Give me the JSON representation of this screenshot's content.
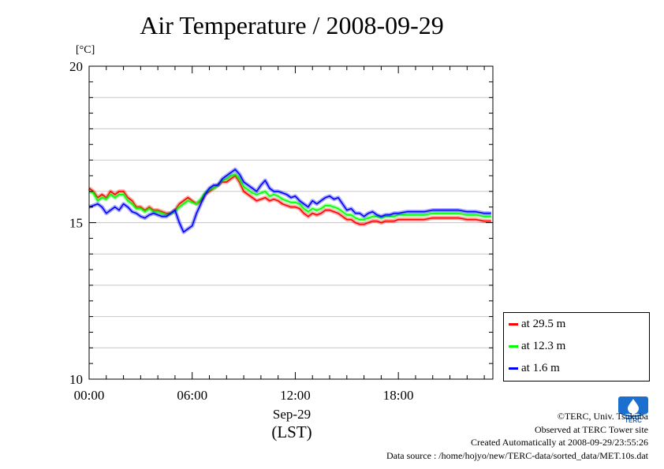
{
  "chart_data": {
    "type": "line",
    "title": "Air Temperature / 2008-09-29",
    "ylabel": "[°C]",
    "xlabel": "Sep-29",
    "xlabel2": "(LST)",
    "x_ticks": [
      "00:00",
      "06:00",
      "12:00",
      "18:00"
    ],
    "x_tick_hours": [
      0,
      6,
      12,
      18
    ],
    "y_ticks": [
      "10",
      "15",
      "20"
    ],
    "y_tick_values": [
      10,
      15,
      20
    ],
    "xlim": [
      0,
      23.5
    ],
    "ylim": [
      10,
      20
    ],
    "grid": true,
    "legend_position": "right-bottom-outside",
    "series": [
      {
        "name": "at 29.5 m",
        "color": "#ff0000",
        "x": [
          0,
          0.25,
          0.5,
          0.75,
          1,
          1.25,
          1.5,
          1.75,
          2,
          2.25,
          2.5,
          2.75,
          3,
          3.25,
          3.5,
          3.75,
          4,
          4.25,
          4.5,
          4.75,
          5,
          5.25,
          5.5,
          5.75,
          6,
          6.25,
          6.5,
          6.75,
          7,
          7.25,
          7.5,
          7.75,
          8,
          8.25,
          8.5,
          8.75,
          9,
          9.25,
          9.5,
          9.75,
          10,
          10.25,
          10.5,
          10.75,
          11,
          11.25,
          11.5,
          11.75,
          12,
          12.25,
          12.5,
          12.75,
          13,
          13.25,
          13.5,
          13.75,
          14,
          14.25,
          14.5,
          14.75,
          15,
          15.25,
          15.5,
          15.75,
          16,
          16.25,
          16.5,
          16.75,
          17,
          17.25,
          17.5,
          17.75,
          18,
          18.5,
          19,
          19.5,
          20,
          20.5,
          21,
          21.5,
          22,
          22.5,
          23,
          23.4
        ],
        "y": [
          16.1,
          16.0,
          15.8,
          15.9,
          15.8,
          16.0,
          15.9,
          16.0,
          16.0,
          15.8,
          15.7,
          15.5,
          15.5,
          15.4,
          15.5,
          15.4,
          15.4,
          15.35,
          15.3,
          15.3,
          15.4,
          15.6,
          15.7,
          15.8,
          15.7,
          15.6,
          15.7,
          15.9,
          16.0,
          16.1,
          16.2,
          16.3,
          16.3,
          16.4,
          16.5,
          16.3,
          16.0,
          15.9,
          15.8,
          15.7,
          15.75,
          15.8,
          15.7,
          15.75,
          15.7,
          15.6,
          15.55,
          15.5,
          15.5,
          15.45,
          15.3,
          15.2,
          15.3,
          15.25,
          15.3,
          15.4,
          15.4,
          15.35,
          15.3,
          15.2,
          15.1,
          15.1,
          15.0,
          14.95,
          14.95,
          15.0,
          15.05,
          15.05,
          15.0,
          15.05,
          15.05,
          15.05,
          15.1,
          15.1,
          15.1,
          15.1,
          15.15,
          15.15,
          15.15,
          15.15,
          15.1,
          15.1,
          15.05,
          15.05
        ]
      },
      {
        "name": "at 12.3 m",
        "color": "#00ff00",
        "x": [
          0,
          0.25,
          0.5,
          0.75,
          1,
          1.25,
          1.5,
          1.75,
          2,
          2.25,
          2.5,
          2.75,
          3,
          3.25,
          3.5,
          3.75,
          4,
          4.25,
          4.5,
          4.75,
          5,
          5.25,
          5.5,
          5.75,
          6,
          6.25,
          6.5,
          6.75,
          7,
          7.25,
          7.5,
          7.75,
          8,
          8.25,
          8.5,
          8.75,
          9,
          9.25,
          9.5,
          9.75,
          10,
          10.25,
          10.5,
          10.75,
          11,
          11.25,
          11.5,
          11.75,
          12,
          12.25,
          12.5,
          12.75,
          13,
          13.25,
          13.5,
          13.75,
          14,
          14.25,
          14.5,
          14.75,
          15,
          15.25,
          15.5,
          15.75,
          16,
          16.25,
          16.5,
          16.75,
          17,
          17.25,
          17.5,
          17.75,
          18,
          18.5,
          19,
          19.5,
          20,
          20.5,
          21,
          21.5,
          22,
          22.5,
          23,
          23.4
        ],
        "y": [
          16.0,
          15.95,
          15.7,
          15.8,
          15.75,
          15.9,
          15.8,
          15.9,
          15.9,
          15.7,
          15.6,
          15.45,
          15.45,
          15.35,
          15.45,
          15.35,
          15.35,
          15.3,
          15.25,
          15.3,
          15.35,
          15.5,
          15.6,
          15.7,
          15.65,
          15.6,
          15.75,
          15.95,
          16.05,
          16.1,
          16.2,
          16.35,
          16.4,
          16.5,
          16.55,
          16.4,
          16.15,
          16.05,
          15.95,
          15.9,
          15.95,
          16.0,
          15.85,
          15.9,
          15.85,
          15.75,
          15.7,
          15.65,
          15.65,
          15.6,
          15.45,
          15.35,
          15.45,
          15.4,
          15.45,
          15.55,
          15.55,
          15.5,
          15.45,
          15.35,
          15.25,
          15.25,
          15.15,
          15.1,
          15.1,
          15.15,
          15.2,
          15.2,
          15.15,
          15.2,
          15.2,
          15.2,
          15.25,
          15.25,
          15.25,
          15.25,
          15.3,
          15.3,
          15.3,
          15.3,
          15.25,
          15.25,
          15.2,
          15.2
        ]
      },
      {
        "name": "at 1.6 m",
        "color": "#0000ff",
        "x": [
          0,
          0.25,
          0.5,
          0.75,
          1,
          1.25,
          1.5,
          1.75,
          2,
          2.25,
          2.5,
          2.75,
          3,
          3.25,
          3.5,
          3.75,
          4,
          4.25,
          4.5,
          4.75,
          5,
          5.25,
          5.5,
          5.75,
          6,
          6.25,
          6.5,
          6.75,
          7,
          7.25,
          7.5,
          7.75,
          8,
          8.25,
          8.5,
          8.75,
          9,
          9.25,
          9.5,
          9.75,
          10,
          10.25,
          10.5,
          10.75,
          11,
          11.25,
          11.5,
          11.75,
          12,
          12.25,
          12.5,
          12.75,
          13,
          13.25,
          13.5,
          13.75,
          14,
          14.25,
          14.5,
          14.75,
          15,
          15.25,
          15.5,
          15.75,
          16,
          16.25,
          16.5,
          16.75,
          17,
          17.25,
          17.5,
          17.75,
          18,
          18.5,
          19,
          19.5,
          20,
          20.5,
          21,
          21.5,
          22,
          22.5,
          23,
          23.4
        ],
        "y": [
          15.5,
          15.55,
          15.6,
          15.5,
          15.3,
          15.4,
          15.5,
          15.4,
          15.6,
          15.5,
          15.35,
          15.3,
          15.2,
          15.15,
          15.25,
          15.3,
          15.25,
          15.2,
          15.2,
          15.3,
          15.4,
          15.0,
          14.7,
          14.8,
          14.9,
          15.3,
          15.6,
          15.9,
          16.1,
          16.2,
          16.2,
          16.4,
          16.5,
          16.6,
          16.7,
          16.55,
          16.3,
          16.2,
          16.1,
          16.0,
          16.2,
          16.35,
          16.1,
          16.0,
          16.0,
          15.95,
          15.9,
          15.8,
          15.85,
          15.7,
          15.6,
          15.5,
          15.7,
          15.6,
          15.7,
          15.8,
          15.85,
          15.75,
          15.8,
          15.6,
          15.4,
          15.45,
          15.3,
          15.3,
          15.2,
          15.3,
          15.35,
          15.25,
          15.2,
          15.25,
          15.25,
          15.3,
          15.3,
          15.35,
          15.35,
          15.35,
          15.4,
          15.4,
          15.4,
          15.4,
          15.35,
          15.35,
          15.3,
          15.3
        ]
      }
    ]
  },
  "credits": {
    "line1": "©TERC, Univ. Tsukuba",
    "line2": "Observed at TERC Tower site",
    "line3": "Created Automatically at 2008-09-29/23:55:26",
    "line4": "Data source : /home/hojyo/new/TERC-data/sorted_data/MET.10s.dat"
  },
  "logo": {
    "text": "TERC",
    "color": "#1a6fcf"
  }
}
